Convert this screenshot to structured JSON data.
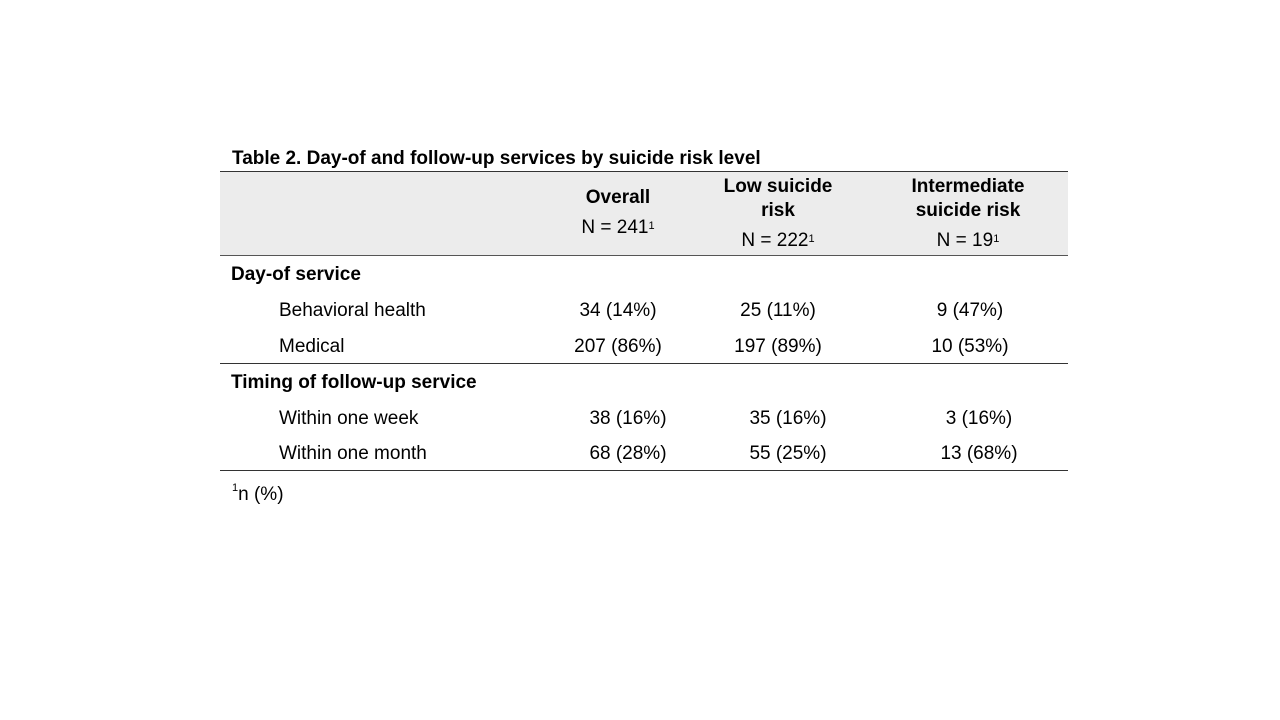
{
  "table": {
    "title": "Table 2. Day-of and follow-up  services by suicide risk level",
    "columns": [
      {
        "name_lines": [
          "Overall"
        ],
        "n_text": "N = 241",
        "n_sup": "1"
      },
      {
        "name_lines": [
          "Low suicide",
          "risk"
        ],
        "n_text": "N = 222",
        "n_sup": "1"
      },
      {
        "name_lines": [
          "Intermediate",
          "suicide risk"
        ],
        "n_text": "N = 19",
        "n_sup": "1"
      }
    ],
    "sections": [
      {
        "label": "Day-of service",
        "rows": [
          {
            "label": "Behavioral health",
            "values": [
              "34 (14%)",
              "25 (11%)",
              "9 (47%)"
            ]
          },
          {
            "label": "Medical",
            "values": [
              "207 (86%)",
              "197 (89%)",
              "10 (53%)"
            ]
          }
        ]
      },
      {
        "label": "Timing of follow-up  service",
        "rows": [
          {
            "label": "Within one week",
            "values": [
              "38 (16%)",
              "35 (16%)",
              "3 (16%)"
            ]
          },
          {
            "label": "Within one month",
            "values": [
              "68 (28%)",
              "55 (25%)",
              "13 (68%)"
            ]
          }
        ]
      }
    ],
    "footnote": {
      "sup": "1",
      "text": "n (%)"
    }
  }
}
